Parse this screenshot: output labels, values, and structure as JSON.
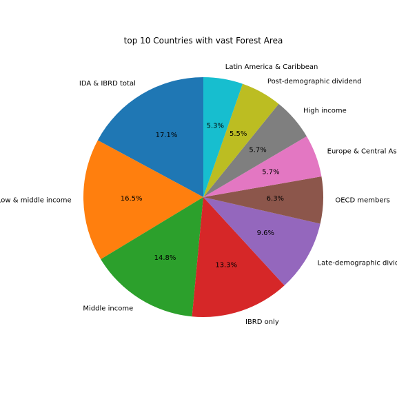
{
  "chart_data": {
    "type": "pie",
    "title": "top 10 Countries with vast Forest Area",
    "start_angle_deg": 90,
    "direction": "counterclockwise",
    "slices": [
      {
        "label": "IDA & IBRD total",
        "pct_text": "17.1%",
        "value": 17.1,
        "color": "#1f77b4"
      },
      {
        "label": "Low & middle income",
        "pct_text": "16.5%",
        "value": 16.5,
        "color": "#ff7f0e"
      },
      {
        "label": "Middle income",
        "pct_text": "14.8%",
        "value": 14.8,
        "color": "#2ca02c"
      },
      {
        "label": "IBRD only",
        "pct_text": "13.3%",
        "value": 13.3,
        "color": "#d62728"
      },
      {
        "label": "Late-demographic dividend",
        "pct_text": "9.6%",
        "value": 9.6,
        "color": "#9467bd"
      },
      {
        "label": "OECD members",
        "pct_text": "6.3%",
        "value": 6.3,
        "color": "#8c564b"
      },
      {
        "label": "Europe & Central Asia",
        "pct_text": "5.7%",
        "value": 5.7,
        "color": "#e377c2"
      },
      {
        "label": "High income",
        "pct_text": "5.7%",
        "value": 5.7,
        "color": "#7f7f7f"
      },
      {
        "label": "Post-demographic dividend",
        "pct_text": "5.5%",
        "value": 5.5,
        "color": "#bcbd22"
      },
      {
        "label": "Latin America & Caribbean",
        "pct_text": "5.3%",
        "value": 5.3,
        "color": "#17becf"
      }
    ]
  }
}
